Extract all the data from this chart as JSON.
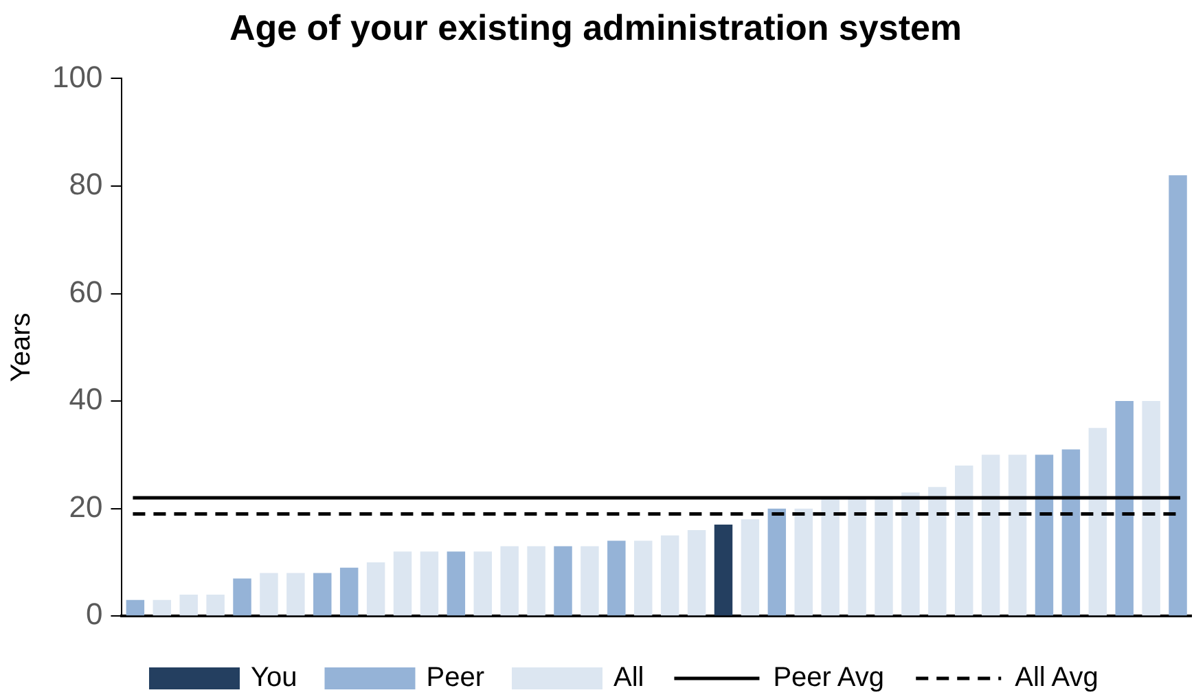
{
  "chart_data": {
    "type": "bar",
    "title": "Age of your existing administration system",
    "ylabel": "Years",
    "categories": [
      null,
      null,
      null,
      null,
      null,
      null,
      null,
      null,
      null,
      null,
      null,
      null,
      null,
      null,
      null,
      null,
      null,
      null,
      null,
      null,
      null,
      null,
      null,
      null,
      null,
      null,
      null,
      null,
      null,
      null,
      null,
      null,
      null,
      null,
      null,
      null,
      null,
      null,
      null,
      null
    ],
    "series": [
      {
        "name": "You",
        "color": "#243f60",
        "values": [
          null,
          null,
          null,
          null,
          null,
          null,
          null,
          null,
          null,
          null,
          null,
          null,
          null,
          null,
          null,
          null,
          null,
          null,
          null,
          null,
          null,
          null,
          17,
          null,
          null,
          null,
          null,
          null,
          null,
          null,
          null,
          null,
          null,
          null,
          null,
          null,
          null,
          null,
          null,
          null
        ]
      },
      {
        "name": "Peer",
        "color": "#95b3d7",
        "values": [
          3,
          null,
          null,
          null,
          7,
          null,
          null,
          8,
          9,
          null,
          null,
          null,
          12,
          null,
          null,
          null,
          13,
          null,
          14,
          null,
          null,
          null,
          null,
          null,
          20,
          null,
          null,
          null,
          null,
          null,
          null,
          null,
          null,
          null,
          30,
          31,
          null,
          40,
          null,
          82
        ]
      },
      {
        "name": "All",
        "color": "#dce6f1",
        "values": [
          null,
          3,
          4,
          4,
          null,
          8,
          8,
          null,
          null,
          10,
          12,
          12,
          null,
          12,
          13,
          13,
          null,
          13,
          null,
          14,
          15,
          16,
          null,
          18,
          null,
          20,
          22,
          22,
          22,
          23,
          24,
          28,
          30,
          30,
          null,
          null,
          35,
          null,
          40,
          null
        ]
      }
    ],
    "ylim": [
      0,
      100
    ],
    "yticks": [
      0,
      20,
      40,
      60,
      80,
      100
    ],
    "grid": false,
    "legend": "bottom",
    "ref_lines": [
      {
        "axis": "y",
        "value": 22,
        "label": "Peer Avg",
        "color": "#000000",
        "line_style": "solid"
      },
      {
        "axis": "y",
        "value": 19,
        "label": "All Avg",
        "color": "#000000",
        "line_style": "dashed"
      }
    ]
  }
}
